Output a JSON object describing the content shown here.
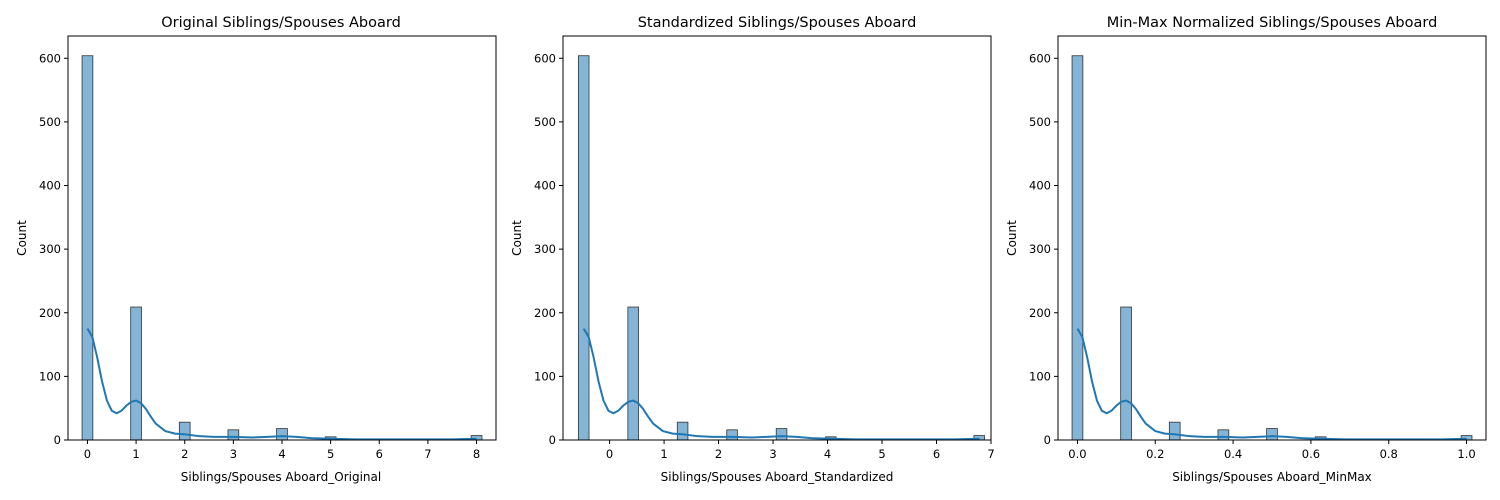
{
  "figure": {
    "bar_fill": "#1f77b4",
    "bar_alpha": 0.55,
    "kde_color": "#1f77b4",
    "background": "#ffffff"
  },
  "chart_data": [
    {
      "type": "bar",
      "title": "Original Siblings/Spouses Aboard",
      "xlabel": "Siblings/Spouses Aboard_Original",
      "ylabel": "Count",
      "xlim": [
        -0.4,
        8.4
      ],
      "ylim": [
        0,
        635
      ],
      "xticks": [
        0,
        1,
        2,
        3,
        4,
        5,
        6,
        7,
        8
      ],
      "xtick_labels": [
        "0",
        "1",
        "2",
        "3",
        "4",
        "5",
        "6",
        "7",
        "8"
      ],
      "yticks": [
        0,
        100,
        200,
        300,
        400,
        500,
        600
      ],
      "ytick_labels": [
        "0",
        "100",
        "200",
        "300",
        "400",
        "500",
        "600"
      ],
      "bin_width": 0.2222,
      "bins": [
        {
          "x": 0,
          "count": 604
        },
        {
          "x": 1,
          "count": 209
        },
        {
          "x": 2,
          "count": 28
        },
        {
          "x": 3,
          "count": 16
        },
        {
          "x": 4,
          "count": 18
        },
        {
          "x": 5,
          "count": 5
        },
        {
          "x": 8,
          "count": 7
        }
      ],
      "kde": {
        "x": [
          0,
          0.1,
          0.2,
          0.3,
          0.4,
          0.5,
          0.6,
          0.7,
          0.8,
          0.9,
          1.0,
          1.1,
          1.2,
          1.3,
          1.4,
          1.6,
          1.8,
          2.0,
          2.3,
          2.6,
          3.0,
          3.4,
          3.7,
          4.0,
          4.3,
          4.6,
          5.0,
          5.5,
          6.0,
          7.0,
          7.5,
          8.0
        ],
        "y": [
          175,
          162,
          130,
          92,
          62,
          46,
          42,
          46,
          54,
          60,
          62,
          58,
          49,
          37,
          26,
          14,
          10,
          9,
          6,
          5,
          5,
          4,
          5,
          6,
          5,
          3,
          2,
          1,
          1,
          1,
          1,
          2
        ]
      }
    },
    {
      "type": "bar",
      "title": "Standardized Siblings/Spouses Aboard",
      "xlabel": "Siblings/Spouses Aboard_Standardized",
      "ylabel": "Count",
      "xlim": [
        -0.855,
        7.0
      ],
      "ylim": [
        0,
        635
      ],
      "xticks": [
        0,
        1,
        2,
        3,
        4,
        5,
        6,
        7
      ],
      "xtick_labels": [
        "0",
        "1",
        "2",
        "3",
        "4",
        "5",
        "6",
        "7"
      ],
      "yticks": [
        0,
        100,
        200,
        300,
        400,
        500,
        600
      ],
      "ytick_labels": [
        "0",
        "100",
        "200",
        "300",
        "400",
        "500",
        "600"
      ],
      "bin_width": 0.1955,
      "bins": [
        {
          "x": -0.475,
          "count": 604
        },
        {
          "x": 0.433,
          "count": 209
        },
        {
          "x": 1.34,
          "count": 28
        },
        {
          "x": 2.248,
          "count": 16
        },
        {
          "x": 3.156,
          "count": 18
        },
        {
          "x": 4.06,
          "count": 5
        },
        {
          "x": 6.784,
          "count": 7
        }
      ],
      "kde": {
        "x": [
          -0.475,
          -0.384,
          -0.293,
          -0.203,
          -0.112,
          -0.021,
          0.07,
          0.16,
          0.251,
          0.342,
          0.433,
          0.524,
          0.614,
          0.705,
          0.796,
          0.977,
          1.159,
          1.34,
          1.613,
          1.885,
          2.248,
          2.611,
          2.884,
          3.156,
          3.428,
          3.701,
          4.064,
          4.518,
          4.972,
          5.88,
          6.334,
          6.788
        ],
        "y": [
          175,
          162,
          130,
          92,
          62,
          46,
          42,
          46,
          54,
          60,
          62,
          58,
          49,
          37,
          26,
          14,
          10,
          9,
          6,
          5,
          5,
          4,
          5,
          6,
          5,
          3,
          2,
          1,
          1,
          1,
          1,
          2
        ]
      }
    },
    {
      "type": "bar",
      "title": "Min-Max Normalized Siblings/Spouses Aboard",
      "xlabel": "Siblings/Spouses Aboard_MinMax",
      "ylabel": "Count",
      "xlim": [
        -0.05,
        1.05
      ],
      "ylim": [
        0,
        635
      ],
      "xticks": [
        0,
        0.2,
        0.4,
        0.6,
        0.8,
        1.0
      ],
      "xtick_labels": [
        "0.0",
        "0.2",
        "0.4",
        "0.6",
        "0.8",
        "1.0"
      ],
      "yticks": [
        0,
        100,
        200,
        300,
        400,
        500,
        600
      ],
      "ytick_labels": [
        "0",
        "100",
        "200",
        "300",
        "400",
        "500",
        "600"
      ],
      "bin_width": 0.0278,
      "bins": [
        {
          "x": 0,
          "count": 604
        },
        {
          "x": 0.125,
          "count": 209
        },
        {
          "x": 0.25,
          "count": 28
        },
        {
          "x": 0.375,
          "count": 16
        },
        {
          "x": 0.5,
          "count": 18
        },
        {
          "x": 0.625,
          "count": 5
        },
        {
          "x": 1.0,
          "count": 7
        }
      ],
      "kde": {
        "x": [
          0,
          0.0125,
          0.025,
          0.0375,
          0.05,
          0.0625,
          0.075,
          0.0875,
          0.1,
          0.1125,
          0.125,
          0.1375,
          0.15,
          0.1625,
          0.175,
          0.2,
          0.225,
          0.25,
          0.2875,
          0.325,
          0.375,
          0.425,
          0.4625,
          0.5,
          0.5375,
          0.575,
          0.625,
          0.6875,
          0.75,
          0.875,
          0.9375,
          1.0
        ],
        "y": [
          175,
          162,
          130,
          92,
          62,
          46,
          42,
          46,
          54,
          60,
          62,
          58,
          49,
          37,
          26,
          14,
          10,
          9,
          6,
          5,
          5,
          4,
          5,
          6,
          5,
          3,
          2,
          1,
          1,
          1,
          1,
          2
        ]
      }
    }
  ]
}
